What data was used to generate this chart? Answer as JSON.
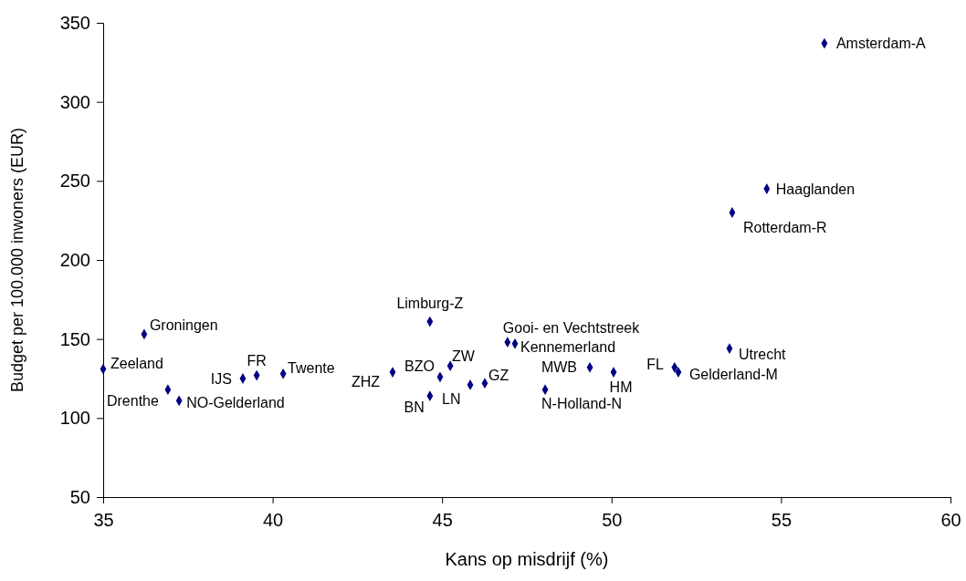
{
  "chart_data": {
    "type": "scatter",
    "xlabel": "Kans op misdrijf (%)",
    "ylabel": "Budget per 100.000 inwoners (EUR)",
    "xlim": [
      35,
      60
    ],
    "xticks": [
      35,
      40,
      45,
      50,
      55,
      60
    ],
    "ylim": [
      50,
      350
    ],
    "yticks": [
      50,
      100,
      150,
      200,
      250,
      300,
      350
    ],
    "grid": false,
    "marker": "diamond",
    "series": [
      {
        "color": "#000080",
        "x": [
          56.28,
          54.58,
          53.56,
          53.48,
          51.86,
          51.97,
          50.06,
          49.36,
          48.04,
          46.93,
          47.15,
          46.26,
          45.83,
          45.24,
          44.94,
          44.64,
          44.64,
          43.54,
          40.31,
          39.53,
          39.12,
          37.24,
          36.91,
          36.21,
          35.0
        ],
        "values": [
          337,
          245,
          230,
          144,
          132,
          129,
          129,
          132,
          118,
          148,
          147,
          122,
          121,
          133,
          126,
          114,
          161,
          129,
          128,
          127,
          125,
          111,
          118,
          153,
          131
        ]
      }
    ],
    "annotations": [
      {
        "text": "Amsterdam-A",
        "x": 56.28,
        "y": 337
      },
      {
        "text": "Haaglanden",
        "x": 54.58,
        "y": 245
      },
      {
        "text": "Rotterdam-R",
        "x": 53.56,
        "y": 230
      },
      {
        "text": "Utrecht",
        "x": 53.48,
        "y": 144
      },
      {
        "text": "FL",
        "x": 51.86,
        "y": 132
      },
      {
        "text": "Gelderland-M",
        "x": 51.97,
        "y": 129
      },
      {
        "text": "HM",
        "x": 50.06,
        "y": 129
      },
      {
        "text": "MWB",
        "x": 49.36,
        "y": 132
      },
      {
        "text": "N-Holland-N",
        "x": 48.04,
        "y": 118
      },
      {
        "text": "Gooi- en Vechtstreek",
        "x": 46.93,
        "y": 148
      },
      {
        "text": "Kennemerland",
        "x": 47.15,
        "y": 147
      },
      {
        "text": "GZ",
        "x": 46.26,
        "y": 122
      },
      {
        "text": "LN",
        "x": 45.83,
        "y": 121
      },
      {
        "text": "ZW",
        "x": 45.24,
        "y": 133
      },
      {
        "text": "BZO",
        "x": 44.94,
        "y": 126
      },
      {
        "text": "BN",
        "x": 44.64,
        "y": 114
      },
      {
        "text": "Limburg-Z",
        "x": 44.64,
        "y": 161
      },
      {
        "text": "ZHZ",
        "x": 43.54,
        "y": 129
      },
      {
        "text": "Twente",
        "x": 40.31,
        "y": 128
      },
      {
        "text": "FR",
        "x": 39.53,
        "y": 127
      },
      {
        "text": "IJS",
        "x": 39.12,
        "y": 125
      },
      {
        "text": "NO-Gelderland",
        "x": 37.24,
        "y": 111
      },
      {
        "text": "Drenthe",
        "x": 36.91,
        "y": 118
      },
      {
        "text": "Groningen",
        "x": 36.21,
        "y": 153
      },
      {
        "text": "Zeeland",
        "x": 35.0,
        "y": 131
      }
    ]
  }
}
